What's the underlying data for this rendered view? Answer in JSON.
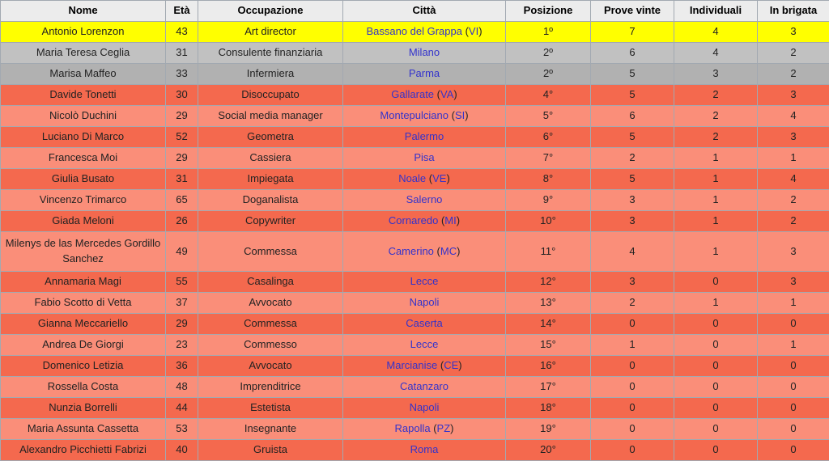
{
  "table": {
    "columns": [
      {
        "key": "nome",
        "label": "Nome"
      },
      {
        "key": "eta",
        "label": "Età"
      },
      {
        "key": "occupazione",
        "label": "Occupazione"
      },
      {
        "key": "citta",
        "label": "Città"
      },
      {
        "key": "posizione",
        "label": "Posizione"
      },
      {
        "key": "prove_vinte",
        "label": "Prove vinte"
      },
      {
        "key": "individuali",
        "label": "Individuali"
      },
      {
        "key": "in_brigata",
        "label": "In brigata"
      }
    ],
    "rows": [
      {
        "nome": "Antonio Lorenzon",
        "eta": "43",
        "occupazione": "Art director",
        "citta": "Bassano del Grappa",
        "provincia": "VI",
        "posizione": "1º",
        "prove_vinte": "7",
        "individuali": "4",
        "in_brigata": "3",
        "highlight": "winner",
        "tall": false
      },
      {
        "nome": "Maria Teresa Ceglia",
        "eta": "31",
        "occupazione": "Consulente finanziaria",
        "citta": "Milano",
        "provincia": null,
        "posizione": "2º",
        "prove_vinte": "6",
        "individuali": "4",
        "in_brigata": "2",
        "highlight": "silver-light",
        "tall": false
      },
      {
        "nome": "Marisa Maffeo",
        "eta": "33",
        "occupazione": "Infermiera",
        "citta": "Parma",
        "provincia": null,
        "posizione": "2º",
        "prove_vinte": "5",
        "individuali": "3",
        "in_brigata": "2",
        "highlight": "silver-dark",
        "tall": false
      },
      {
        "nome": "Davide Tonetti",
        "eta": "30",
        "occupazione": "Disoccupato",
        "citta": "Gallarate",
        "provincia": "VA",
        "posizione": "4°",
        "prove_vinte": "5",
        "individuali": "2",
        "in_brigata": "3",
        "highlight": "elim-dark",
        "tall": false
      },
      {
        "nome": "Nicolò Duchini",
        "eta": "29",
        "occupazione": "Social media manager",
        "citta": "Montepulciano",
        "provincia": "SI",
        "posizione": "5°",
        "prove_vinte": "6",
        "individuali": "2",
        "in_brigata": "4",
        "highlight": "elim-light",
        "tall": false
      },
      {
        "nome": "Luciano Di Marco",
        "eta": "52",
        "occupazione": "Geometra",
        "citta": "Palermo",
        "provincia": null,
        "posizione": "6°",
        "prove_vinte": "5",
        "individuali": "2",
        "in_brigata": "3",
        "highlight": "elim-dark",
        "tall": false
      },
      {
        "nome": "Francesca Moi",
        "eta": "29",
        "occupazione": "Cassiera",
        "citta": "Pisa",
        "provincia": null,
        "posizione": "7°",
        "prove_vinte": "2",
        "individuali": "1",
        "in_brigata": "1",
        "highlight": "elim-light",
        "tall": false
      },
      {
        "nome": "Giulia Busato",
        "eta": "31",
        "occupazione": "Impiegata",
        "citta": "Noale",
        "provincia": "VE",
        "posizione": "8°",
        "prove_vinte": "5",
        "individuali": "1",
        "in_brigata": "4",
        "highlight": "elim-dark",
        "tall": false
      },
      {
        "nome": "Vincenzo Trimarco",
        "eta": "65",
        "occupazione": "Doganalista",
        "citta": "Salerno",
        "provincia": null,
        "posizione": "9°",
        "prove_vinte": "3",
        "individuali": "1",
        "in_brigata": "2",
        "highlight": "elim-light",
        "tall": false
      },
      {
        "nome": "Giada Meloni",
        "eta": "26",
        "occupazione": "Copywriter",
        "citta": "Cornaredo",
        "provincia": "MI",
        "posizione": "10°",
        "prove_vinte": "3",
        "individuali": "1",
        "in_brigata": "2",
        "highlight": "elim-dark",
        "tall": false
      },
      {
        "nome": "Milenys de las Mercedes Gordillo Sanchez",
        "eta": "49",
        "occupazione": "Commessa",
        "citta": "Camerino",
        "provincia": "MC",
        "posizione": "11°",
        "prove_vinte": "4",
        "individuali": "1",
        "in_brigata": "3",
        "highlight": "elim-light",
        "tall": true
      },
      {
        "nome": "Annamaria Magi",
        "eta": "55",
        "occupazione": "Casalinga",
        "citta": "Lecce",
        "provincia": null,
        "posizione": "12°",
        "prove_vinte": "3",
        "individuali": "0",
        "in_brigata": "3",
        "highlight": "elim-dark",
        "tall": false
      },
      {
        "nome": "Fabio Scotto di Vetta",
        "eta": "37",
        "occupazione": "Avvocato",
        "citta": "Napoli",
        "provincia": null,
        "posizione": "13°",
        "prove_vinte": "2",
        "individuali": "1",
        "in_brigata": "1",
        "highlight": "elim-light",
        "tall": false
      },
      {
        "nome": "Gianna Meccariello",
        "eta": "29",
        "occupazione": "Commessa",
        "citta": "Caserta",
        "provincia": null,
        "posizione": "14°",
        "prove_vinte": "0",
        "individuali": "0",
        "in_brigata": "0",
        "highlight": "elim-dark",
        "tall": false
      },
      {
        "nome": "Andrea De Giorgi",
        "eta": "23",
        "occupazione": "Commesso",
        "citta": "Lecce",
        "provincia": null,
        "posizione": "15°",
        "prove_vinte": "1",
        "individuali": "0",
        "in_brigata": "1",
        "highlight": "elim-light",
        "tall": false
      },
      {
        "nome": "Domenico Letizia",
        "eta": "36",
        "occupazione": "Avvocato",
        "citta": "Marcianise",
        "provincia": "CE",
        "posizione": "16°",
        "prove_vinte": "0",
        "individuali": "0",
        "in_brigata": "0",
        "highlight": "elim-dark",
        "tall": false
      },
      {
        "nome": "Rossella Costa",
        "eta": "48",
        "occupazione": "Imprenditrice",
        "citta": "Catanzaro",
        "provincia": null,
        "posizione": "17°",
        "prove_vinte": "0",
        "individuali": "0",
        "in_brigata": "0",
        "highlight": "elim-light",
        "tall": false
      },
      {
        "nome": "Nunzia Borrelli",
        "eta": "44",
        "occupazione": "Estetista",
        "citta": "Napoli",
        "provincia": null,
        "posizione": "18°",
        "prove_vinte": "0",
        "individuali": "0",
        "in_brigata": "0",
        "highlight": "elim-dark",
        "tall": false
      },
      {
        "nome": "Maria Assunta Cassetta",
        "eta": "53",
        "occupazione": "Insegnante",
        "citta": "Rapolla",
        "provincia": "PZ",
        "posizione": "19°",
        "prove_vinte": "0",
        "individuali": "0",
        "in_brigata": "0",
        "highlight": "elim-light",
        "tall": false
      },
      {
        "nome": "Alexandro Picchietti Fabrizi",
        "eta": "40",
        "occupazione": "Gruista",
        "citta": "Roma",
        "provincia": null,
        "posizione": "20°",
        "prove_vinte": "0",
        "individuali": "0",
        "in_brigata": "0",
        "highlight": "elim-dark",
        "tall": false
      }
    ]
  },
  "colors": {
    "border": "#a2a9b1",
    "header_bg": "#ececec",
    "winner_bg": "#ffff00",
    "second_place_bg": "#c1c1c1",
    "second_place_alt_bg": "#b1b1b1",
    "eliminated_dark_bg": "#f4694e",
    "eliminated_light_bg": "#fa8e79",
    "link": "#3333cc",
    "text": "#222222"
  }
}
